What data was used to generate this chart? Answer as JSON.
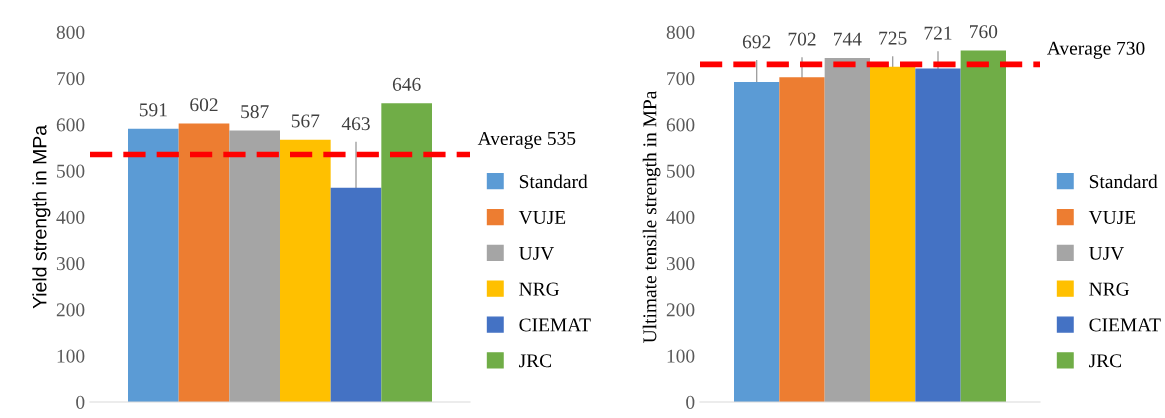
{
  "chart_data": [
    {
      "type": "bar",
      "ylabel": "Yield strength in MPa",
      "categories": [
        null
      ],
      "ylim": [
        0,
        800
      ],
      "yticks": [
        0,
        100,
        200,
        300,
        400,
        500,
        600,
        700,
        800
      ],
      "grid": false,
      "legend": "right",
      "data_labels": true,
      "series": [
        {
          "name": "Standard",
          "color": "#5b9bd5",
          "values": [
            591
          ]
        },
        {
          "name": "VUJE",
          "color": "#ed7d31",
          "values": [
            602
          ]
        },
        {
          "name": "UJV",
          "color": "#a5a5a5",
          "values": [
            587
          ]
        },
        {
          "name": "NRG",
          "color": "#ffc000",
          "values": [
            567
          ]
        },
        {
          "name": "CIEMAT",
          "color": "#4472c4",
          "values": [
            463
          ],
          "errors": [
            [
              463,
              561
            ]
          ]
        },
        {
          "name": "JRC",
          "color": "#70ad47",
          "values": [
            646
          ]
        }
      ],
      "ref_lines": [
        {
          "axis": "y",
          "value": 535,
          "label": "Average 535",
          "color": "#ff0000",
          "line_style": "dashed"
        }
      ]
    },
    {
      "type": "bar",
      "ylabel": "Ultimate tensile strength in MPa",
      "categories": [
        null
      ],
      "ylim": [
        0,
        800
      ],
      "yticks": [
        0,
        100,
        200,
        300,
        400,
        500,
        600,
        700,
        800
      ],
      "grid": false,
      "legend": "right",
      "data_labels": true,
      "series": [
        {
          "name": "Standard",
          "color": "#5b9bd5",
          "values": [
            692
          ],
          "errors": [
            [
              692,
              738
            ]
          ]
        },
        {
          "name": "VUJE",
          "color": "#ed7d31",
          "values": [
            702
          ],
          "errors": [
            [
              702,
              744
            ]
          ]
        },
        {
          "name": "UJV",
          "color": "#a5a5a5",
          "values": [
            744
          ]
        },
        {
          "name": "NRG",
          "color": "#ffc000",
          "values": [
            725
          ],
          "errors": [
            [
              725,
              746
            ]
          ]
        },
        {
          "name": "CIEMAT",
          "color": "#4472c4",
          "values": [
            721
          ],
          "errors": [
            [
              721,
              757
            ]
          ]
        },
        {
          "name": "JRC",
          "color": "#70ad47",
          "values": [
            760
          ]
        }
      ],
      "ref_lines": [
        {
          "axis": "y",
          "value": 730,
          "label": "Average 730",
          "color": "#ff0000",
          "line_style": "dashed"
        }
      ]
    }
  ]
}
